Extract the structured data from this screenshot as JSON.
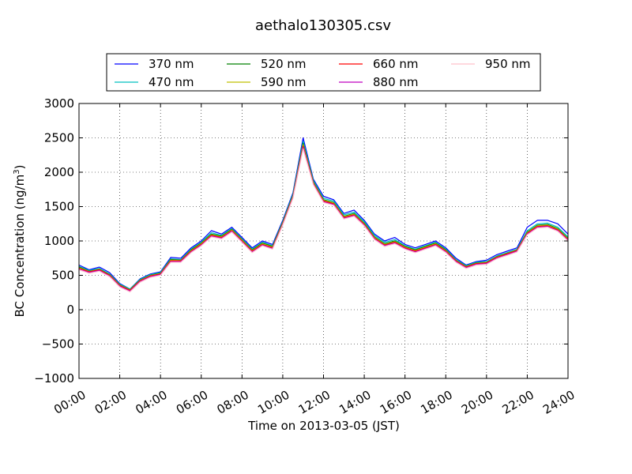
{
  "chart_data": {
    "type": "line",
    "title": "aethalo130305.csv",
    "xlabel": "Time on 2013-03-05 (JST)",
    "ylabel_main": "BC Concentration (ng/m",
    "ylabel_sup": "3",
    "ylabel_close": ")",
    "xlim": [
      0,
      24
    ],
    "ylim": [
      -1000,
      3000
    ],
    "x_ticks": [
      0,
      2,
      4,
      6,
      8,
      10,
      12,
      14,
      16,
      18,
      20,
      22,
      24
    ],
    "x_tick_labels": [
      "00:00",
      "02:00",
      "04:00",
      "06:00",
      "08:00",
      "10:00",
      "12:00",
      "14:00",
      "16:00",
      "18:00",
      "20:00",
      "22:00",
      "24:00"
    ],
    "y_ticks": [
      -1000,
      -500,
      0,
      500,
      1000,
      1500,
      2000,
      2500,
      3000
    ],
    "y_tick_labels": [
      "−1000",
      "−500",
      "0",
      "500",
      "1000",
      "1500",
      "2000",
      "2500",
      "3000"
    ],
    "grid": true,
    "legend_position": "top",
    "x": [
      0.0,
      0.5,
      1.0,
      1.5,
      2.0,
      2.5,
      3.0,
      3.5,
      4.0,
      4.5,
      5.0,
      5.5,
      6.0,
      6.5,
      7.0,
      7.5,
      8.0,
      8.5,
      9.0,
      9.5,
      10.0,
      10.5,
      11.0,
      11.5,
      12.0,
      12.5,
      13.0,
      13.5,
      14.0,
      14.5,
      15.0,
      15.5,
      16.0,
      16.5,
      17.0,
      17.5,
      18.0,
      18.5,
      19.0,
      19.5,
      20.0,
      20.5,
      21.0,
      21.5,
      22.0,
      22.5,
      23.0,
      23.5,
      24.0
    ],
    "series": [
      {
        "name": "370 nm",
        "color": "#0000ff",
        "values": [
          650,
          580,
          620,
          540,
          380,
          300,
          450,
          520,
          550,
          760,
          750,
          900,
          1000,
          1150,
          1100,
          1200,
          1050,
          900,
          1000,
          950,
          1300,
          1700,
          2500,
          1900,
          1650,
          1600,
          1400,
          1450,
          1300,
          1100,
          1000,
          1050,
          950,
          900,
          950,
          1000,
          900,
          750,
          650,
          700,
          720,
          800,
          850,
          900,
          1200,
          1300,
          1300,
          1250,
          1100
        ]
      },
      {
        "name": "470 nm",
        "color": "#00bfbf",
        "values": [
          630,
          570,
          600,
          520,
          370,
          300,
          440,
          510,
          540,
          740,
          730,
          880,
          980,
          1120,
          1080,
          1180,
          1030,
          880,
          980,
          930,
          1280,
          1680,
          2450,
          1880,
          1620,
          1580,
          1380,
          1420,
          1280,
          1080,
          980,
          1020,
          930,
          880,
          930,
          980,
          880,
          730,
          640,
          690,
          700,
          780,
          830,
          880,
          1150,
          1250,
          1260,
          1200,
          1060
        ]
      },
      {
        "name": "520 nm",
        "color": "#008000",
        "values": [
          620,
          560,
          590,
          510,
          360,
          290,
          430,
          500,
          530,
          730,
          720,
          870,
          970,
          1100,
          1070,
          1170,
          1020,
          870,
          970,
          920,
          1270,
          1660,
          2420,
          1860,
          1600,
          1560,
          1360,
          1400,
          1260,
          1060,
          960,
          1000,
          920,
          870,
          920,
          970,
          870,
          720,
          630,
          680,
          690,
          770,
          820,
          870,
          1130,
          1230,
          1240,
          1180,
          1040
        ]
      },
      {
        "name": "590 nm",
        "color": "#bfbf00",
        "values": [
          610,
          555,
          585,
          505,
          355,
          285,
          425,
          495,
          525,
          720,
          715,
          860,
          960,
          1090,
          1060,
          1160,
          1010,
          860,
          960,
          910,
          1260,
          1650,
          2400,
          1850,
          1590,
          1550,
          1350,
          1390,
          1250,
          1050,
          950,
          990,
          910,
          860,
          910,
          960,
          860,
          715,
          625,
          675,
          685,
          765,
          815,
          865,
          1120,
          1220,
          1230,
          1170,
          1030
        ]
      },
      {
        "name": "660 nm",
        "color": "#ff0000",
        "values": [
          600,
          550,
          580,
          500,
          350,
          280,
          420,
          490,
          520,
          710,
          710,
          850,
          950,
          1080,
          1050,
          1150,
          1000,
          850,
          950,
          900,
          1250,
          1640,
          2380,
          1840,
          1580,
          1540,
          1340,
          1380,
          1240,
          1040,
          940,
          980,
          900,
          850,
          900,
          950,
          850,
          710,
          620,
          670,
          680,
          760,
          810,
          860,
          1110,
          1210,
          1220,
          1160,
          1020
        ]
      },
      {
        "name": "880 nm",
        "color": "#bf00bf",
        "values": [
          590,
          540,
          570,
          490,
          340,
          270,
          410,
          480,
          510,
          700,
          700,
          840,
          940,
          1070,
          1040,
          1140,
          990,
          840,
          940,
          890,
          1240,
          1630,
          2360,
          1830,
          1570,
          1530,
          1330,
          1370,
          1230,
          1030,
          930,
          970,
          890,
          840,
          890,
          940,
          840,
          700,
          610,
          660,
          670,
          750,
          800,
          850,
          1100,
          1200,
          1210,
          1150,
          1010
        ]
      },
      {
        "name": "950 nm",
        "color": "#ffc0cb",
        "values": [
          580,
          530,
          560,
          480,
          330,
          260,
          400,
          470,
          500,
          690,
          690,
          830,
          930,
          1060,
          1030,
          1130,
          980,
          830,
          930,
          880,
          1230,
          1620,
          2340,
          1820,
          1560,
          1520,
          1320,
          1360,
          1220,
          1020,
          920,
          960,
          880,
          830,
          880,
          930,
          830,
          690,
          600,
          650,
          660,
          740,
          790,
          840,
          1090,
          1190,
          1200,
          1140,
          1000
        ]
      }
    ]
  }
}
